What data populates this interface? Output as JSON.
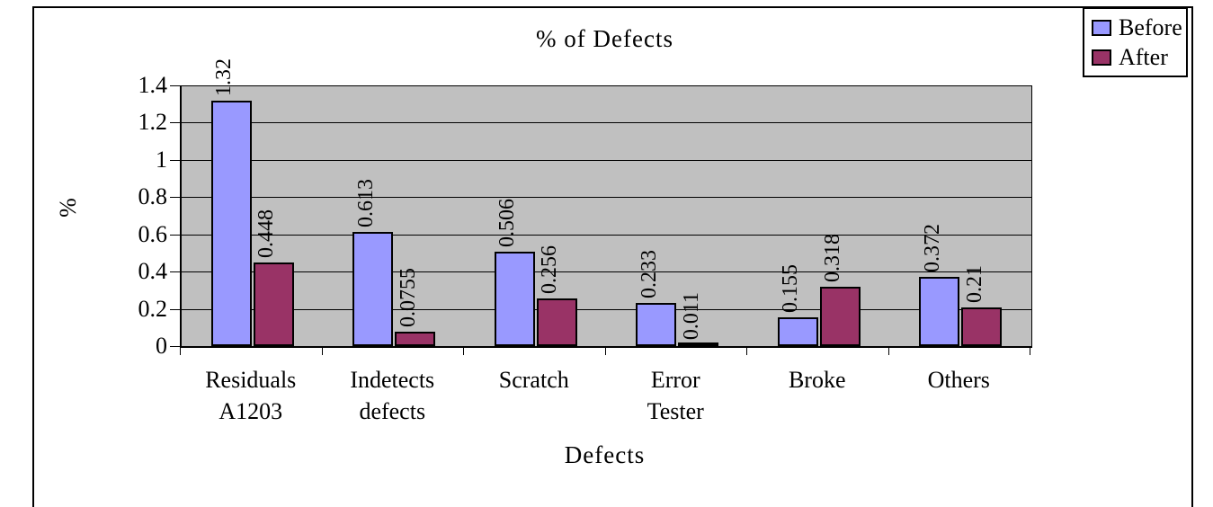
{
  "chart_data": {
    "type": "bar",
    "title": "% of Defects",
    "xlabel": "Defects",
    "ylabel": "%",
    "categories": [
      "Residuals A1203",
      "Indetects defects",
      "Scratch",
      "Error Tester",
      "Broke",
      "Others"
    ],
    "category_display_labels": [
      "Residuals\nA1203",
      "Indetects\ndefects",
      "Scratch",
      "Error\nTester",
      "Broke",
      "Others"
    ],
    "series": [
      {
        "name": "Before",
        "color": "#9999FF",
        "values": [
          1.32,
          0.613,
          0.506,
          0.233,
          0.155,
          0.372
        ],
        "value_labels": [
          "1.32",
          "0.613",
          "0.506",
          "0.233",
          "0.155",
          "0.372"
        ]
      },
      {
        "name": "After",
        "color": "#993366",
        "values": [
          0.448,
          0.0755,
          0.256,
          0.011,
          0.318,
          0.21
        ],
        "value_labels": [
          "0.448",
          "0.0755",
          "0.256",
          "0.011",
          "0.318",
          "0.21"
        ]
      }
    ],
    "y_ticks": [
      "1.4",
      "1.2",
      "1",
      "0.8",
      "0.6",
      "0.4",
      "0.2",
      "0"
    ],
    "ylim": [
      0,
      1.4
    ],
    "grid": true,
    "gridline_color": "#000000",
    "plot_background": "#C0C0C0",
    "legend_position": "top-right"
  },
  "legend": {
    "items": [
      {
        "label": "Before",
        "color": "#9999FF"
      },
      {
        "label": "After",
        "color": "#993366"
      }
    ]
  }
}
